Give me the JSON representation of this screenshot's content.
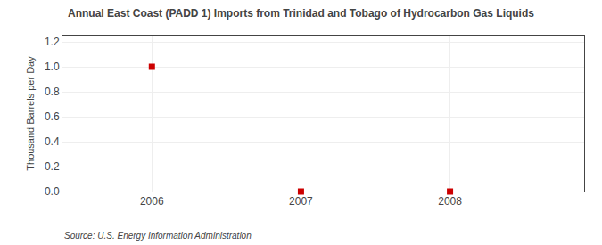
{
  "chart_data": {
    "type": "scatter",
    "title": "Annual East Coast (PADD 1) Imports from Trinidad and Tobago of Hydrocarbon Gas Liquids",
    "ylabel": "Thousand Barrels per Day",
    "annotations": [
      "Source: U.S. Energy Information Administration"
    ],
    "x": [
      2006,
      2007,
      2008
    ],
    "values": [
      1.0,
      0.0,
      0.0
    ],
    "color": "#cc0000",
    "marker": "square",
    "xlim": [
      2005.4,
      2008.9
    ],
    "xticks": [
      2006,
      2007,
      2008
    ],
    "ylim": [
      0.0,
      1.25
    ],
    "yticks": [
      {
        "value": 0.0,
        "label": "0.0"
      },
      {
        "value": 0.2,
        "label": "0.2"
      },
      {
        "value": 0.4,
        "label": "0.4"
      },
      {
        "value": 0.6,
        "label": "0.6"
      },
      {
        "value": 0.8,
        "label": "0.8"
      },
      {
        "value": 1.0,
        "label": "1.0"
      },
      {
        "value": 1.2,
        "label": "1.2"
      }
    ],
    "grid": true
  }
}
